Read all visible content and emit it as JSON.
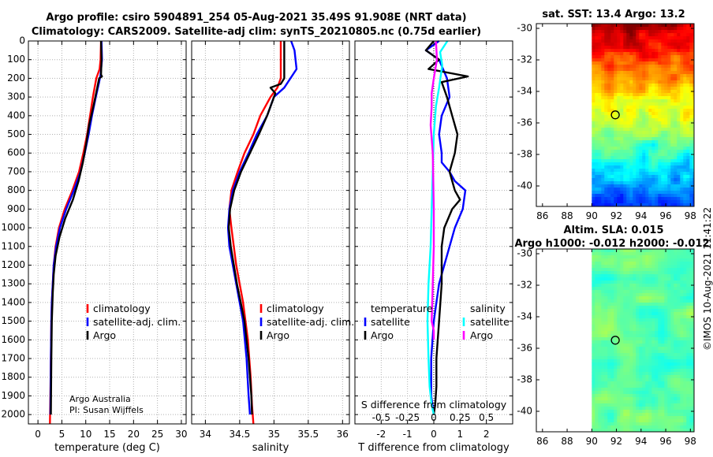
{
  "title": {
    "line1": "Argo profile: csiro 5904891_254 05-Aug-2021 35.49S 91.908E (NRT data)",
    "line2": "Climatology: CARS2009. Satellite-adj clim: synTS_20210805.nc (0.75d earlier)"
  },
  "credit": {
    "line1": "Argo Australia",
    "line2": "PI: Susan Wijffels"
  },
  "timestamp": "©IMOS 10-Aug-2021 11:41:22",
  "colors": {
    "climatology": "#ff0000",
    "satellite_adj": "#0000ff",
    "argo": "#000000",
    "sat_temp": "#0000ff",
    "sat_sal": "#00ffff",
    "argo_sal": "#ff00ff"
  },
  "chart_data": [
    {
      "id": "temperature",
      "type": "line",
      "xlabel": "temperature (deg C)",
      "ylabel": "",
      "xlim": [
        -2,
        31
      ],
      "ylim": [
        2050,
        0
      ],
      "xticks": [
        0,
        5,
        10,
        15,
        20,
        25,
        30
      ],
      "yticks": [
        0,
        100,
        200,
        300,
        400,
        500,
        600,
        700,
        800,
        900,
        1000,
        1100,
        1200,
        1300,
        1400,
        1500,
        1600,
        1700,
        1800,
        1900,
        2000
      ],
      "grid": true,
      "legend": [
        "climatology",
        "satellite-adj. clim.",
        "Argo"
      ],
      "series": [
        {
          "name": "climatology",
          "color": "#ff0000",
          "x": [
            13.2,
            13.1,
            12.9,
            12.2,
            11.5,
            10.9,
            10.3,
            9.5,
            8.6,
            7.2,
            5.6,
            4.4,
            3.7,
            3.3,
            3.1,
            2.9,
            2.8,
            2.7,
            2.6,
            2.5
          ],
          "y": [
            0,
            100,
            150,
            200,
            300,
            400,
            500,
            600,
            700,
            800,
            900,
            1000,
            1100,
            1200,
            1300,
            1400,
            1500,
            1700,
            1900,
            2050
          ]
        },
        {
          "name": "satellite-adj. clim.",
          "color": "#0000ff",
          "x": [
            13.3,
            13.4,
            13.1,
            12.8,
            12.1,
            11.3,
            10.6,
            9.8,
            8.9,
            7.5,
            5.9,
            4.6,
            3.8,
            3.3,
            3.1,
            2.9,
            2.8,
            2.7,
            2.6
          ],
          "y": [
            0,
            100,
            180,
            220,
            300,
            400,
            500,
            600,
            700,
            800,
            900,
            1000,
            1100,
            1200,
            1300,
            1400,
            1500,
            1700,
            2000
          ]
        },
        {
          "name": "Argo",
          "color": "#000000",
          "x": [
            13.2,
            13.3,
            13.2,
            13.4,
            12.8,
            12.4,
            11.6,
            10.7,
            10.1,
            9.4,
            8.5,
            7.3,
            5.7,
            4.5,
            3.7,
            3.3,
            3.1,
            2.9,
            2.8,
            2.7
          ],
          "y": [
            0,
            100,
            180,
            190,
            200,
            250,
            350,
            450,
            550,
            650,
            750,
            850,
            950,
            1050,
            1150,
            1250,
            1350,
            1500,
            1700,
            2000
          ]
        }
      ]
    },
    {
      "id": "salinity",
      "type": "line",
      "xlabel": "salinity",
      "xlim": [
        33.8,
        36.1
      ],
      "ylim": [
        2050,
        0
      ],
      "xticks": [
        34,
        34.5,
        35,
        35.5,
        36
      ],
      "grid": true,
      "legend": [
        "climatology",
        "satellite-adj. clim.",
        "Argo"
      ],
      "series": [
        {
          "name": "climatology",
          "color": "#ff0000",
          "x": [
            35.1,
            35.1,
            35.1,
            35.05,
            34.95,
            34.8,
            34.7,
            34.57,
            34.47,
            34.38,
            34.35,
            34.38,
            34.45,
            34.55,
            34.62,
            34.66,
            34.68,
            34.7
          ],
          "y": [
            0,
            100,
            200,
            250,
            300,
            400,
            500,
            600,
            700,
            800,
            900,
            1000,
            1200,
            1400,
            1600,
            1800,
            1950,
            2050
          ]
        },
        {
          "name": "satellite-adj. clim.",
          "color": "#0000ff",
          "x": [
            35.25,
            35.3,
            35.33,
            35.15,
            35.0,
            34.9,
            34.75,
            34.63,
            34.5,
            34.4,
            34.35,
            34.33,
            34.35,
            34.45,
            34.55,
            34.6,
            34.63,
            34.65
          ],
          "y": [
            0,
            50,
            150,
            250,
            300,
            400,
            500,
            600,
            700,
            800,
            900,
            1000,
            1100,
            1300,
            1500,
            1700,
            1900,
            2000
          ]
        },
        {
          "name": "Argo",
          "color": "#000000",
          "x": [
            35.15,
            35.15,
            35.15,
            35.1,
            34.95,
            35.02,
            34.9,
            34.78,
            34.65,
            34.52,
            34.42,
            34.36,
            34.34,
            34.37,
            34.46,
            34.57,
            34.63,
            34.67,
            34.68
          ],
          "y": [
            0,
            100,
            200,
            230,
            250,
            280,
            400,
            500,
            600,
            700,
            800,
            900,
            1000,
            1100,
            1300,
            1500,
            1700,
            1900,
            2000
          ]
        }
      ]
    },
    {
      "id": "difference",
      "type": "line",
      "xlabel": "T difference from climatology",
      "xlabel_top": "S difference from climatology",
      "xlim": [
        -3,
        3
      ],
      "ylim": [
        2050,
        0
      ],
      "xticks": [
        -2,
        -1,
        0,
        1,
        2
      ],
      "xticks_S": [
        -0.5,
        -0.25,
        0,
        0.25,
        0.5
      ],
      "xticks_S_labels": [
        "-0.5",
        "-0.25",
        "0",
        "0.25",
        "0.5"
      ],
      "grid": true,
      "legend_left": {
        "title": "temperature",
        "items": [
          "satellite",
          "Argo"
        ]
      },
      "legend_right": {
        "title": "salinity",
        "items": [
          "satellite",
          "Argo"
        ]
      },
      "series": [
        {
          "name": "temperature satellite",
          "color": "#0000ff",
          "x": [
            0.2,
            -0.3,
            0.2,
            0.5,
            0.6,
            0.3,
            0.2,
            0.3,
            0.3,
            0.6,
            0.8,
            1.2,
            1.1,
            0.8,
            0.6,
            0.4,
            0.2,
            0.1,
            0.0,
            -0.1,
            -0.1,
            -0.1,
            0.0
          ],
          "y": [
            0,
            50,
            100,
            200,
            300,
            400,
            500,
            600,
            650,
            700,
            750,
            800,
            900,
            1000,
            1100,
            1200,
            1300,
            1400,
            1500,
            1700,
            1800,
            1900,
            2000
          ]
        },
        {
          "name": "temperature Argo",
          "color": "#000000",
          "x": [
            0.0,
            -0.3,
            0.2,
            -0.2,
            1.3,
            0.3,
            0.5,
            0.7,
            0.9,
            0.8,
            0.6,
            0.8,
            1.0,
            0.7,
            0.4,
            0.3,
            0.3,
            0.2,
            0.1,
            0.1,
            0.05,
            0.0
          ],
          "y": [
            0,
            50,
            100,
            150,
            190,
            220,
            300,
            400,
            500,
            600,
            700,
            800,
            850,
            900,
            1000,
            1100,
            1300,
            1500,
            1700,
            1850,
            1950,
            2000
          ]
        },
        {
          "name": "salinity satellite",
          "color": "#00ffff",
          "x": [
            0.13,
            0.06,
            0.08,
            0.05,
            0.02,
            0.0,
            -0.01,
            -0.02,
            -0.03,
            -0.05,
            -0.06,
            -0.05,
            -0.04,
            -0.02,
            0.0
          ],
          "y": [
            0,
            60,
            130,
            250,
            350,
            500,
            700,
            900,
            1100,
            1300,
            1500,
            1700,
            1850,
            1950,
            2000
          ]
        },
        {
          "name": "salinity Argo",
          "color": "#ff00ff",
          "x": [
            0.02,
            0.03,
            0.0,
            -0.02,
            -0.02,
            -0.03,
            -0.01,
            0.0,
            0.0,
            -0.01,
            -0.02,
            0.0,
            0.0
          ],
          "y": [
            0,
            100,
            200,
            280,
            350,
            450,
            600,
            900,
            1100,
            1300,
            1500,
            1550,
            1600
          ]
        }
      ]
    },
    {
      "id": "map_sst",
      "type": "heatmap",
      "title": "sat. SST: 13.4 Argo: 13.2",
      "xlim": [
        85.5,
        98.3
      ],
      "ylim": [
        -41.3,
        -29.7
      ],
      "xticks": [
        86,
        88,
        90,
        92,
        94,
        96,
        98
      ],
      "yticks": [
        -30,
        -32,
        -34,
        -36,
        -38,
        -40
      ],
      "argo_position": [
        91.908,
        -35.49
      ],
      "data_left_edge": 90
    },
    {
      "id": "map_sla",
      "type": "heatmap",
      "title": "Altim. SLA: 0.015",
      "subtitle": "Argo h1000: -0.012 h2000: -0.012",
      "xlim": [
        85.5,
        98.3
      ],
      "ylim": [
        -41.3,
        -29.7
      ],
      "xticks": [
        86,
        88,
        90,
        92,
        94,
        96,
        98
      ],
      "yticks": [
        -30,
        -32,
        -34,
        -36,
        -38,
        -40
      ],
      "argo_position": [
        91.908,
        -35.49
      ],
      "data_left_edge": 90
    }
  ]
}
